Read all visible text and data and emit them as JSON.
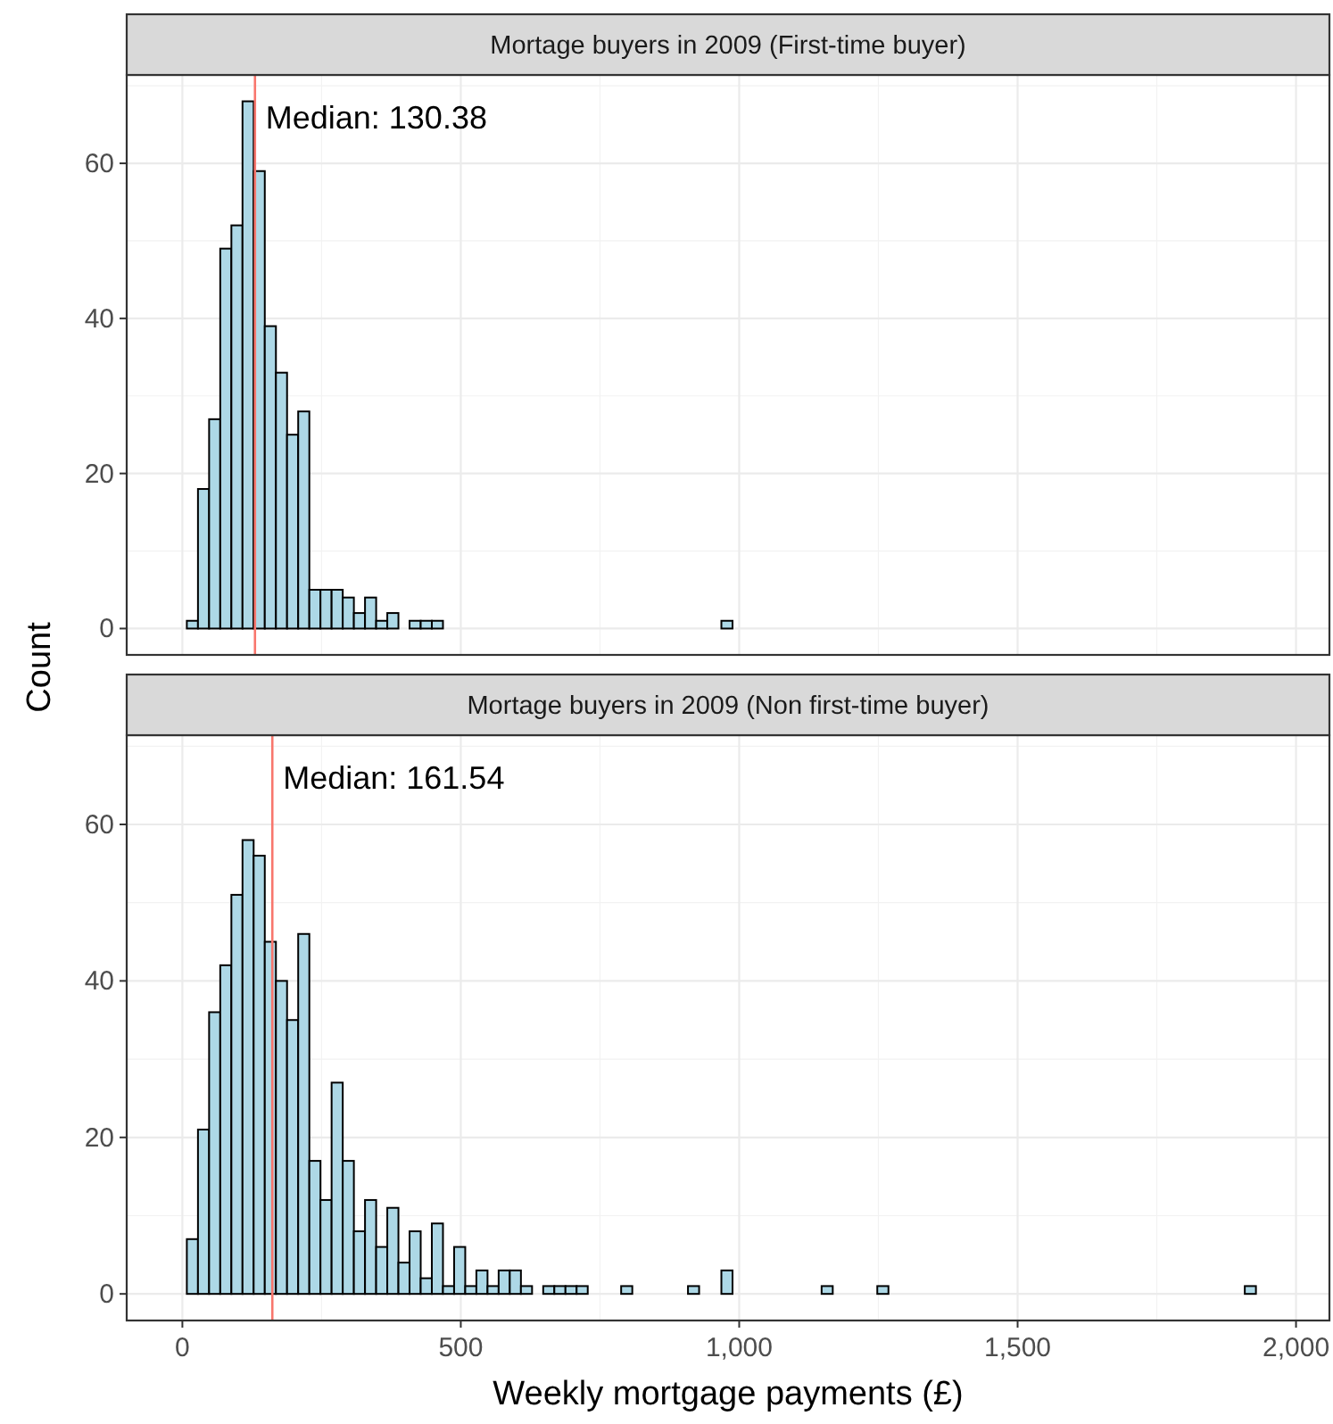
{
  "chart_data": [
    {
      "type": "histogram",
      "title": "Mortage buyers in 2009 (First-time buyer)",
      "ylabel": "Count",
      "bins": [
        8,
        28,
        48,
        68,
        88,
        108,
        128,
        148,
        168,
        188,
        208,
        228,
        248,
        268,
        288,
        308,
        328,
        348,
        368,
        388,
        408,
        428,
        448,
        468,
        488,
        508,
        528,
        548,
        568,
        588,
        608,
        628,
        648,
        668,
        688,
        708,
        728,
        748,
        768,
        788,
        808,
        828,
        848,
        868,
        888,
        908,
        928,
        948,
        968,
        988,
        1008,
        1028,
        1048,
        1068,
        1088,
        1108,
        1128,
        1148,
        1168,
        1188,
        1208,
        1228,
        1248,
        1268,
        1288,
        1308,
        1328,
        1348,
        1368,
        1388,
        1408,
        1428,
        1448,
        1468,
        1488,
        1508,
        1528,
        1548,
        1568,
        1588,
        1608,
        1628,
        1648,
        1668,
        1688,
        1708,
        1728,
        1748,
        1768,
        1788,
        1808,
        1828,
        1848,
        1868,
        1888,
        1908,
        1928,
        1948,
        1968,
        1988
      ],
      "values": [
        1,
        18,
        27,
        49,
        52,
        68,
        59,
        39,
        33,
        25,
        28,
        5,
        5,
        5,
        4,
        2,
        4,
        1,
        2,
        0,
        1,
        1,
        1,
        0,
        0,
        0,
        0,
        0,
        0,
        0,
        0,
        0,
        0,
        0,
        0,
        0,
        0,
        0,
        0,
        0,
        0,
        0,
        0,
        0,
        0,
        0,
        0,
        0,
        1,
        0,
        0,
        0,
        0,
        0,
        0,
        0,
        0,
        0,
        0,
        0,
        0,
        0,
        0,
        0,
        0,
        0,
        0,
        0,
        0,
        0,
        0,
        0,
        0,
        0,
        0,
        0,
        0,
        0,
        0,
        0,
        0,
        0,
        0,
        0,
        0,
        0,
        0,
        0,
        0,
        0,
        0,
        0,
        0,
        0,
        0,
        0,
        0,
        0,
        0
      ],
      "color": "#add8e6",
      "xlim": [
        -100,
        2060
      ],
      "xticks": [
        {
          "value": 0,
          "label": null
        },
        {
          "value": 500,
          "label": null
        },
        {
          "value": 1000,
          "label": null
        },
        {
          "value": 1500,
          "label": null
        },
        {
          "value": 2000,
          "label": null
        }
      ],
      "ylim": [
        -3.4,
        71.4
      ],
      "yticks": [
        0,
        20,
        40,
        60
      ],
      "grid": true,
      "tick_labels": "y",
      "ref_lines": [
        {
          "axis": "x",
          "value": 130.38,
          "label": "Median: 130.38",
          "color": "#f8766d"
        }
      ]
    },
    {
      "type": "histogram",
      "title": "Mortage buyers in 2009 (Non first-time buyer)",
      "xlabel": "Weekly mortgage payments (£)",
      "bins": [
        8,
        28,
        48,
        68,
        88,
        108,
        128,
        148,
        168,
        188,
        208,
        228,
        248,
        268,
        288,
        308,
        328,
        348,
        368,
        388,
        408,
        428,
        448,
        468,
        488,
        508,
        528,
        548,
        568,
        588,
        608,
        628,
        648,
        668,
        688,
        708,
        728,
        748,
        768,
        788,
        808,
        828,
        848,
        868,
        888,
        908,
        928,
        948,
        968,
        988,
        1008,
        1028,
        1048,
        1068,
        1088,
        1108,
        1128,
        1148,
        1168,
        1188,
        1208,
        1228,
        1248,
        1268,
        1288,
        1308,
        1328,
        1348,
        1368,
        1388,
        1408,
        1428,
        1448,
        1468,
        1488,
        1508,
        1528,
        1548,
        1568,
        1588,
        1608,
        1628,
        1648,
        1668,
        1688,
        1708,
        1728,
        1748,
        1768,
        1788,
        1808,
        1828,
        1848,
        1868,
        1888,
        1908,
        1928,
        1948,
        1968,
        1988
      ],
      "values": [
        7,
        21,
        36,
        42,
        51,
        58,
        56,
        45,
        40,
        35,
        46,
        17,
        12,
        27,
        17,
        8,
        12,
        6,
        11,
        4,
        8,
        2,
        9,
        1,
        6,
        1,
        3,
        1,
        3,
        3,
        1,
        0,
        1,
        1,
        1,
        1,
        0,
        0,
        0,
        1,
        0,
        0,
        0,
        0,
        0,
        1,
        0,
        0,
        3,
        0,
        0,
        0,
        0,
        0,
        0,
        0,
        0,
        1,
        0,
        0,
        0,
        0,
        1,
        0,
        0,
        0,
        0,
        0,
        0,
        0,
        0,
        0,
        0,
        0,
        0,
        0,
        0,
        0,
        0,
        0,
        0,
        0,
        0,
        0,
        0,
        0,
        0,
        0,
        0,
        0,
        0,
        0,
        0,
        0,
        0,
        1,
        0,
        0,
        0
      ],
      "color": "#add8e6",
      "xlim": [
        -100,
        2060
      ],
      "xticks": [
        {
          "value": 0,
          "label": "0"
        },
        {
          "value": 500,
          "label": "500"
        },
        {
          "value": 1000,
          "label": "1,000"
        },
        {
          "value": 1500,
          "label": "1,500"
        },
        {
          "value": 2000,
          "label": "2,000"
        }
      ],
      "ylim": [
        -3.4,
        71.4
      ],
      "yticks": [
        0,
        20,
        40,
        60
      ],
      "grid": true,
      "ref_lines": [
        {
          "axis": "x",
          "value": 161.54,
          "label": "Median: 161.54",
          "color": "#f8766d"
        }
      ]
    }
  ]
}
